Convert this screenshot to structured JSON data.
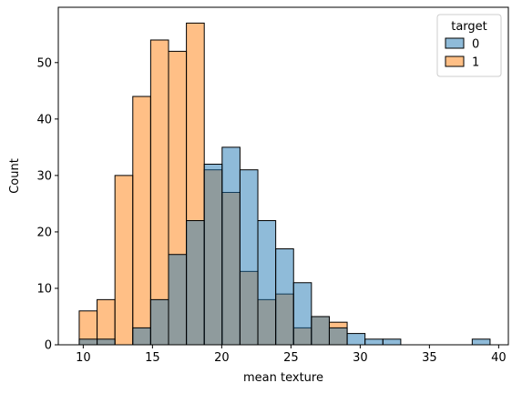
{
  "chart_data": {
    "type": "bar",
    "subtype": "overlaid-histogram",
    "title": "",
    "xlabel": "mean texture",
    "ylabel": "Count",
    "xlim": [
      8.2,
      40.7
    ],
    "ylim": [
      0,
      59.8
    ],
    "xticks": [
      10,
      15,
      20,
      25,
      30,
      35,
      40
    ],
    "yticks": [
      0,
      10,
      20,
      30,
      40,
      50
    ],
    "grid": false,
    "legend": {
      "title": "target",
      "position": "top-right"
    },
    "bin_edges": [
      9.71,
      11.0,
      12.29,
      13.58,
      14.87,
      16.16,
      17.45,
      18.74,
      20.03,
      21.32,
      22.61,
      23.9,
      25.19,
      26.48,
      27.77,
      29.06,
      30.35,
      31.64,
      32.93,
      34.22,
      35.51,
      36.8,
      38.09,
      39.38
    ],
    "series": [
      {
        "name": "1",
        "color": "#ff7f0e",
        "values": [
          6,
          8,
          30,
          44,
          54,
          52,
          57,
          31,
          27,
          13,
          8,
          9,
          3,
          5,
          4,
          0,
          0,
          0,
          0,
          0,
          0,
          0,
          0
        ]
      },
      {
        "name": "0",
        "color": "#1f77b4",
        "values": [
          1,
          1,
          0,
          3,
          8,
          16,
          22,
          32,
          35,
          31,
          22,
          17,
          11,
          5,
          3,
          2,
          1,
          1,
          0,
          0,
          0,
          0,
          1
        ]
      }
    ]
  }
}
